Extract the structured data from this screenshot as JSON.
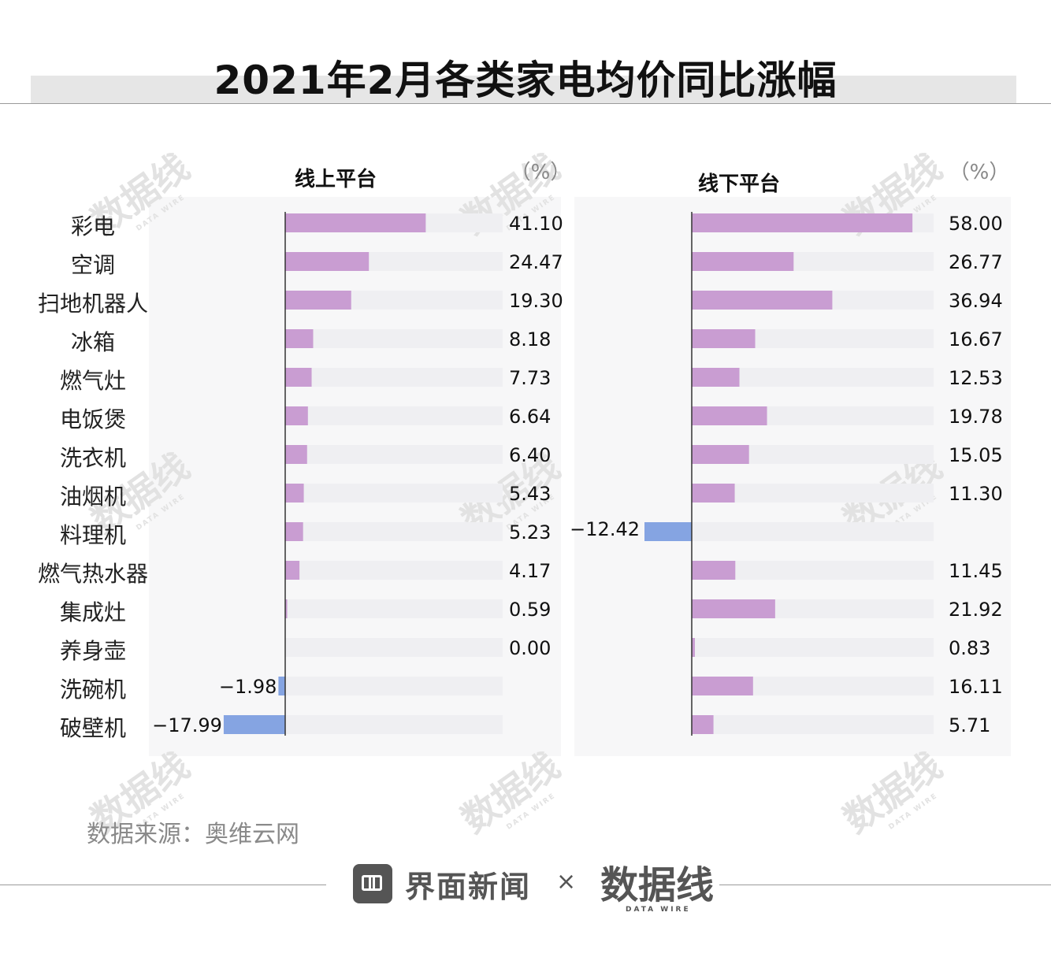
{
  "title": "2021年2月各类家电均价同比涨幅",
  "source": "数据来源：奥维云网",
  "brand": {
    "name": "界面新闻",
    "separator": "×",
    "partner": "数据线",
    "partner_sub": "DATA WIRE"
  },
  "watermark": {
    "text": "数据线",
    "sub": "DATA WIRE"
  },
  "colors": {
    "positive": "#c99dd2",
    "negative": "#85a4e2",
    "track": "#efeff2",
    "axis": "#333333"
  },
  "chart_data": [
    {
      "type": "bar",
      "title": "线上平台",
      "unit": "（%）",
      "categories": [
        "彩电",
        "空调",
        "扫地机器人",
        "冰箱",
        "燃气灶",
        "电饭煲",
        "洗衣机",
        "油烟机",
        "料理机",
        "燃气热水器",
        "集成灶",
        "养身壶",
        "洗碗机",
        "破壁机"
      ],
      "values": [
        41.1,
        24.47,
        19.3,
        8.18,
        7.73,
        6.64,
        6.4,
        5.43,
        5.23,
        4.17,
        0.59,
        0.0,
        -1.98,
        -17.99
      ],
      "labels": [
        "41.10",
        "24.47",
        "19.30",
        "8.18",
        "7.73",
        "6.64",
        "6.40",
        "5.43",
        "5.23",
        "4.17",
        "0.59",
        "0.00",
        "−1.98",
        "−17.99"
      ]
    },
    {
      "type": "bar",
      "title": "线下平台",
      "unit": "（%）",
      "categories": [
        "彩电",
        "空调",
        "扫地机器人",
        "冰箱",
        "燃气灶",
        "电饭煲",
        "洗衣机",
        "油烟机",
        "料理机",
        "燃气热水器",
        "集成灶",
        "养身壶",
        "洗碗机",
        "破壁机"
      ],
      "values": [
        58.0,
        26.77,
        36.94,
        16.67,
        12.53,
        19.78,
        15.05,
        11.3,
        -12.42,
        11.45,
        21.92,
        0.83,
        16.11,
        5.71
      ],
      "labels": [
        "58.00",
        "26.77",
        "36.94",
        "16.67",
        "12.53",
        "19.78",
        "15.05",
        "11.30",
        "−12.42",
        "11.45",
        "21.92",
        "0.83",
        "16.11",
        "5.71"
      ]
    }
  ]
}
